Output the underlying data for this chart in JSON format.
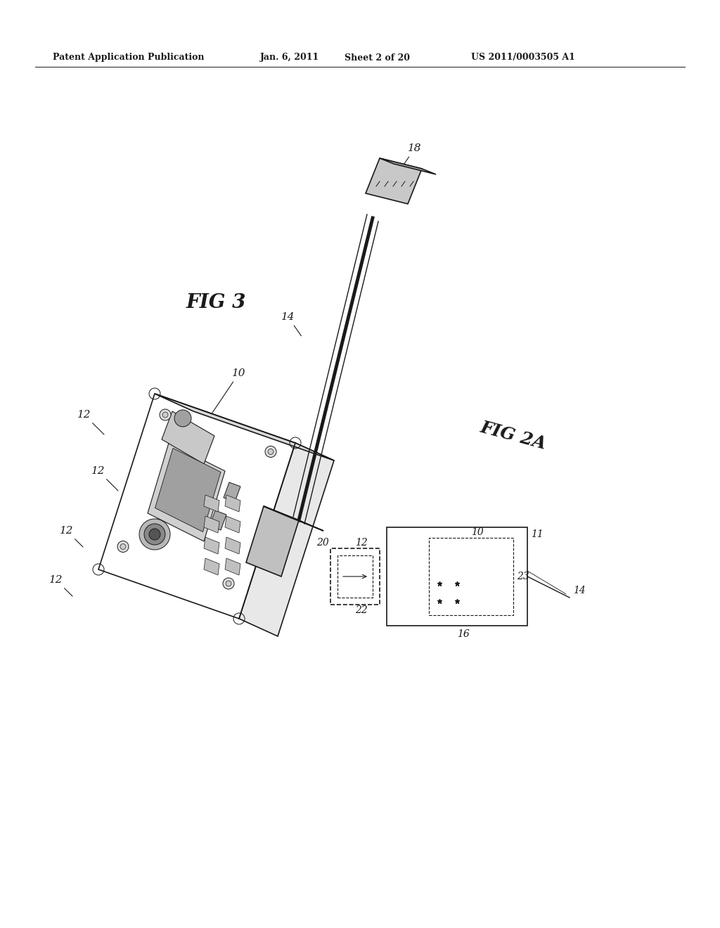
{
  "bg_color": "#ffffff",
  "header_text": "Patent Application Publication",
  "header_date": "Jan. 6, 2011",
  "header_sheet": "Sheet 2 of 20",
  "header_patent": "US 2011/0003505 A1",
  "fig3_label": "FIG 3",
  "fig2a_label": "FIG 2A",
  "line_color": "#1a1a1a",
  "fig_width": 10.24,
  "fig_height": 13.2
}
